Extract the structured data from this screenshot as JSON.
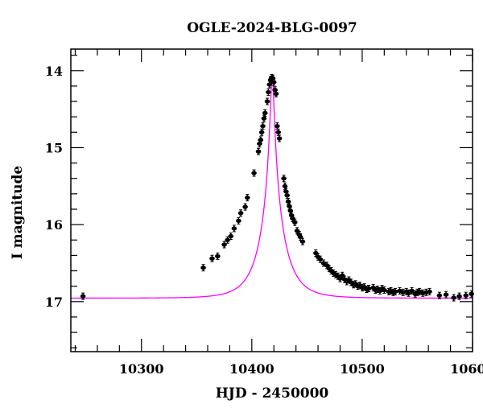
{
  "chart_data": {
    "type": "scatter",
    "title": "OGLE-2024-BLG-0097",
    "xlabel": "HJD - 2450000",
    "ylabel": "I magnitude",
    "xlim": [
      10236,
      10600
    ],
    "ylim": [
      17.65,
      13.72
    ],
    "y_inverted": true,
    "xticks": [
      10300,
      10400,
      10500,
      10600
    ],
    "xtick_labels": [
      "10300",
      "10400",
      "10500",
      "10600"
    ],
    "yticks": [
      14,
      15,
      16,
      17
    ],
    "ytick_labels": [
      "14",
      "15",
      "16",
      "17"
    ],
    "grid": false,
    "legend": "none",
    "colors": {
      "points": "#000000",
      "model": "#ff00ff",
      "axes": "#000000"
    },
    "series": [
      {
        "type": "points_with_errorbars",
        "color": "#000000",
        "points": [
          {
            "x": 10247,
            "y": 16.93
          },
          {
            "x": 10356,
            "y": 16.56
          },
          {
            "x": 10364,
            "y": 16.44
          },
          {
            "x": 10369,
            "y": 16.41
          },
          {
            "x": 10375,
            "y": 16.26
          },
          {
            "x": 10378,
            "y": 16.2
          },
          {
            "x": 10381,
            "y": 16.15
          },
          {
            "x": 10384,
            "y": 16.05
          },
          {
            "x": 10388,
            "y": 15.95
          },
          {
            "x": 10390,
            "y": 15.85
          },
          {
            "x": 10394,
            "y": 15.77
          },
          {
            "x": 10396,
            "y": 15.65
          },
          {
            "x": 10402,
            "y": 15.33
          },
          {
            "x": 10406,
            "y": 15.05
          },
          {
            "x": 10407,
            "y": 14.95
          },
          {
            "x": 10408,
            "y": 14.9
          },
          {
            "x": 10409,
            "y": 14.8
          },
          {
            "x": 10410,
            "y": 14.72
          },
          {
            "x": 10411,
            "y": 14.62
          },
          {
            "x": 10412,
            "y": 14.55
          },
          {
            "x": 10414,
            "y": 14.4
          },
          {
            "x": 10415,
            "y": 14.28
          },
          {
            "x": 10416,
            "y": 14.18
          },
          {
            "x": 10417,
            "y": 14.12
          },
          {
            "x": 10418,
            "y": 14.09
          },
          {
            "x": 10419,
            "y": 14.1
          },
          {
            "x": 10420,
            "y": 14.15
          },
          {
            "x": 10421,
            "y": 14.25
          },
          {
            "x": 10422,
            "y": 14.3
          },
          {
            "x": 10423,
            "y": 14.72
          },
          {
            "x": 10424,
            "y": 14.8
          },
          {
            "x": 10425,
            "y": 14.88
          },
          {
            "x": 10429,
            "y": 15.4
          },
          {
            "x": 10430,
            "y": 15.5
          },
          {
            "x": 10431,
            "y": 15.57
          },
          {
            "x": 10432,
            "y": 15.62
          },
          {
            "x": 10433,
            "y": 15.7
          },
          {
            "x": 10434,
            "y": 15.76
          },
          {
            "x": 10435,
            "y": 15.82
          },
          {
            "x": 10436,
            "y": 15.88
          },
          {
            "x": 10437,
            "y": 15.92
          },
          {
            "x": 10439,
            "y": 15.97
          },
          {
            "x": 10441,
            "y": 16.08
          },
          {
            "x": 10443,
            "y": 16.13
          },
          {
            "x": 10444,
            "y": 16.16
          },
          {
            "x": 10446,
            "y": 16.22
          },
          {
            "x": 10458,
            "y": 16.37
          },
          {
            "x": 10460,
            "y": 16.42
          },
          {
            "x": 10462,
            "y": 16.45
          },
          {
            "x": 10465,
            "y": 16.5
          },
          {
            "x": 10468,
            "y": 16.53
          },
          {
            "x": 10470,
            "y": 16.57
          },
          {
            "x": 10472,
            "y": 16.6
          },
          {
            "x": 10474,
            "y": 16.63
          },
          {
            "x": 10476,
            "y": 16.65
          },
          {
            "x": 10478,
            "y": 16.67
          },
          {
            "x": 10480,
            "y": 16.7
          },
          {
            "x": 10482,
            "y": 16.66
          },
          {
            "x": 10484,
            "y": 16.71
          },
          {
            "x": 10486,
            "y": 16.74
          },
          {
            "x": 10488,
            "y": 16.72
          },
          {
            "x": 10490,
            "y": 16.75
          },
          {
            "x": 10492,
            "y": 16.78
          },
          {
            "x": 10494,
            "y": 16.77
          },
          {
            "x": 10496,
            "y": 16.8
          },
          {
            "x": 10498,
            "y": 16.79
          },
          {
            "x": 10500,
            "y": 16.82
          },
          {
            "x": 10502,
            "y": 16.81
          },
          {
            "x": 10504,
            "y": 16.84
          },
          {
            "x": 10506,
            "y": 16.83
          },
          {
            "x": 10510,
            "y": 16.82
          },
          {
            "x": 10512,
            "y": 16.85
          },
          {
            "x": 10514,
            "y": 16.84
          },
          {
            "x": 10516,
            "y": 16.86
          },
          {
            "x": 10518,
            "y": 16.83
          },
          {
            "x": 10520,
            "y": 16.85
          },
          {
            "x": 10524,
            "y": 16.87
          },
          {
            "x": 10526,
            "y": 16.86
          },
          {
            "x": 10528,
            "y": 16.88
          },
          {
            "x": 10530,
            "y": 16.87
          },
          {
            "x": 10534,
            "y": 16.86
          },
          {
            "x": 10537,
            "y": 16.88
          },
          {
            "x": 10540,
            "y": 16.87
          },
          {
            "x": 10542,
            "y": 16.89
          },
          {
            "x": 10545,
            "y": 16.86
          },
          {
            "x": 10548,
            "y": 16.9
          },
          {
            "x": 10550,
            "y": 16.88
          },
          {
            "x": 10552,
            "y": 16.87
          },
          {
            "x": 10555,
            "y": 16.89
          },
          {
            "x": 10558,
            "y": 16.88
          },
          {
            "x": 10561,
            "y": 16.87
          },
          {
            "x": 10570,
            "y": 16.92
          },
          {
            "x": 10576,
            "y": 16.91
          },
          {
            "x": 10583,
            "y": 16.95
          },
          {
            "x": 10588,
            "y": 16.93
          },
          {
            "x": 10594,
            "y": 16.92
          },
          {
            "x": 10599,
            "y": 16.9
          }
        ]
      },
      {
        "type": "model_curve",
        "color": "#ff00ff",
        "model": {
          "baseline": 16.955,
          "peak": 14.09,
          "t0": 10418.5,
          "u0": 0.075,
          "tE": 21
        }
      }
    ]
  }
}
